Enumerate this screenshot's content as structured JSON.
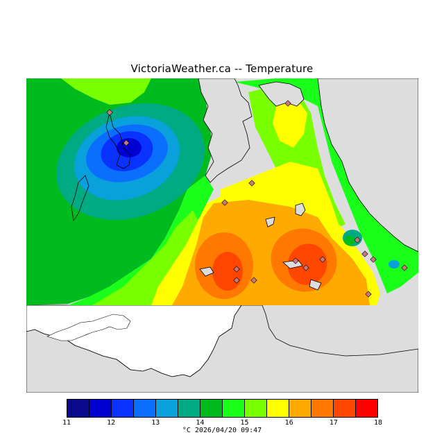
{
  "title": "VictoriaWeather.ca -- Temperature",
  "legend": {
    "ticks": [
      "11",
      "12",
      "13",
      "14",
      "15",
      "16",
      "17",
      "18"
    ],
    "colors": [
      "#0a0a8c",
      "#0000d2",
      "#0a32ff",
      "#0a6eff",
      "#0aa0dc",
      "#00aa82",
      "#00bb1e",
      "#19ff19",
      "#78ff00",
      "#ffff00",
      "#ffaa00",
      "#ff7800",
      "#ff4600",
      "#ff0000"
    ],
    "unit": "°C",
    "date": "2026/04/20 09:47"
  },
  "map_colors": {
    "land": "#dddddd",
    "water_white": "#ffffff",
    "green_dark": "#00bb1e",
    "green": "#19ff19",
    "yellow_green": "#78ff00",
    "yellow": "#ffff00",
    "orange_light": "#ffaa00",
    "orange": "#ff7800",
    "red_orange": "#ff4600",
    "teal": "#00aa82",
    "cyan": "#0aa0dc",
    "blue": "#0a6eff",
    "blue_deep": "#0a32ff",
    "navy": "#0000d2",
    "station_marker": "#c87878"
  }
}
